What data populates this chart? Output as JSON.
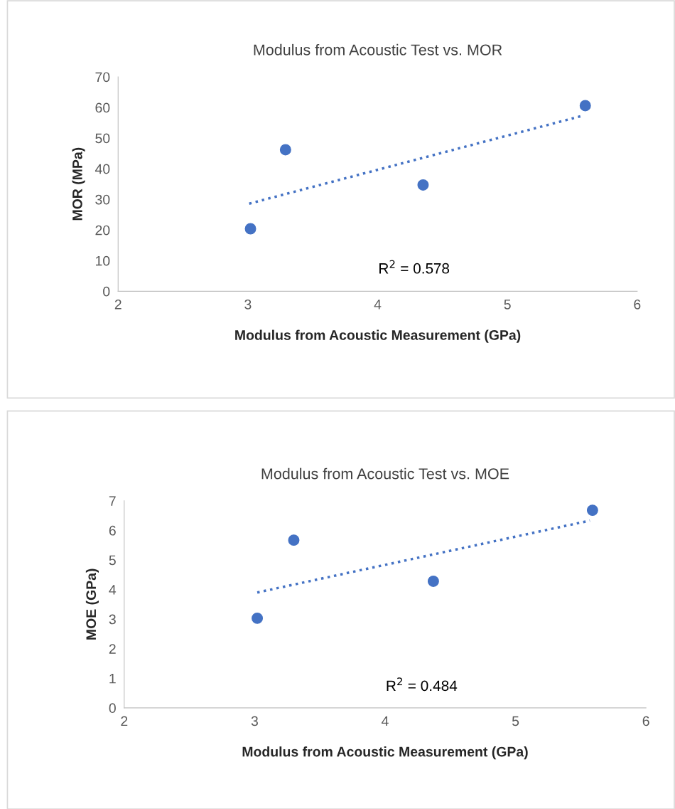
{
  "chart_data": [
    {
      "type": "scatter",
      "title": "Modulus from Acoustic Test vs. MOR",
      "xlabel": "Modulus from Acoustic Measurement (GPa)",
      "ylabel": "MOR (MPa)",
      "xlim": [
        2,
        6
      ],
      "xticks": [
        2,
        3,
        4,
        5,
        6
      ],
      "ylim": [
        0,
        70
      ],
      "yticks": [
        0,
        10,
        20,
        30,
        40,
        50,
        60,
        70
      ],
      "grid": false,
      "series": [
        {
          "color": "#4472c4",
          "marker": "circle",
          "x": [
            3.02,
            3.29,
            4.35,
            5.6
          ],
          "values": [
            20.4,
            46.2,
            34.7,
            60.6
          ]
        },
        {
          "type": "line",
          "color": "#4472c4",
          "marker": "none",
          "line_style": "dotted",
          "x": [
            3.01,
            5.57
          ],
          "values": [
            28.6,
            57.2
          ]
        }
      ],
      "annotations": [
        "R$^{2}$ = 0.578"
      ]
    },
    {
      "type": "scatter",
      "title": "Modulus from Acoustic Test vs. MOE",
      "xlabel": "Modulus from Acoustic Measurement (GPa)",
      "ylabel": "MOE (GPa)",
      "xlim": [
        2,
        6
      ],
      "xticks": [
        2,
        3,
        4,
        5,
        6
      ],
      "ylim": [
        0,
        7
      ],
      "yticks": [
        0,
        1,
        2,
        3,
        4,
        5,
        6,
        7
      ],
      "grid": false,
      "series": [
        {
          "color": "#4472c4",
          "marker": "circle",
          "x": [
            3.02,
            3.3,
            4.37,
            5.59
          ],
          "values": [
            3.03,
            5.67,
            4.28,
            6.68
          ]
        },
        {
          "type": "line",
          "color": "#4472c4",
          "marker": "none",
          "line_style": "dotted",
          "x": [
            3.02,
            5.57
          ],
          "values": [
            3.9,
            6.33
          ]
        }
      ],
      "annotations": [
        "R$^{2}$ = 0.484"
      ]
    }
  ]
}
